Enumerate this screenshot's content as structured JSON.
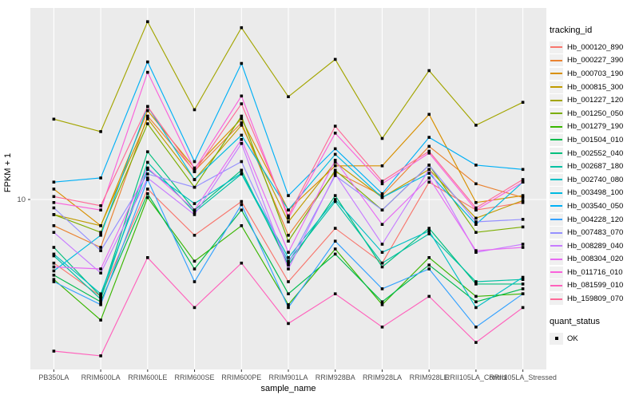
{
  "axes": {
    "xlabel": "sample_name",
    "ylabel": "FPKM + 1",
    "y_tick_label": "10"
  },
  "legend": {
    "tracking_title": "tracking_id",
    "quant_title": "quant_status",
    "quant_items": [
      {
        "label": "OK"
      }
    ]
  },
  "style": {
    "panel_bg": "#EBEBEB",
    "grid_color": "#FFFFFF",
    "tick_color": "#333333",
    "tick_label_color": "#4D4D4D",
    "axis_title_color": "#000000",
    "point_color": "#000000"
  },
  "chart_data": {
    "type": "line",
    "title": "",
    "xlabel": "sample_name",
    "ylabel": "FPKM + 1",
    "y_scale": "log10",
    "ylim": [
      2.0,
      62
    ],
    "y_ticks": [
      10
    ],
    "grid": "major-on-white",
    "legend_position": "right",
    "point_shape": "filled-square",
    "x_categories": [
      "PB350LA",
      "RRIM600LA",
      "RRIM600LE",
      "RRIM600SE",
      "RRIM600PE",
      "RRIM901LA",
      "RRIM928BA",
      "RRIM928LA",
      "RRIM928LE",
      "RRII105LA_Control",
      "RRII105LA_Stressed"
    ],
    "quant_status_all": "OK",
    "series": [
      {
        "name": "Hb_000120_890",
        "color": "#F8766D",
        "values": [
          5.3,
          3.8,
          11.1,
          7.0,
          9.8,
          4.4,
          7.5,
          5.3,
          11.9,
          9.0,
          9.7
        ]
      },
      {
        "name": "Hb_000227_390",
        "color": "#EA8331",
        "values": [
          7.7,
          6.2,
          23.0,
          13.3,
          21.5,
          7.0,
          13.2,
          10.4,
          17.0,
          11.7,
          10.2
        ]
      },
      {
        "name": "Hb_000703_190",
        "color": "#D89000",
        "values": [
          11.1,
          7.7,
          24.3,
          13.7,
          22.4,
          9.0,
          14.0,
          14.0,
          23.4,
          9.7,
          10.4
        ]
      },
      {
        "name": "Hb_000815_300",
        "color": "#C09B00",
        "values": [
          8.6,
          7.7,
          22.4,
          12.2,
          21.0,
          8.0,
          14.5,
          10.2,
          13.5,
          8.3,
          9.9
        ]
      },
      {
        "name": "Hb_001227_120",
        "color": "#A3A500",
        "values": [
          22.3,
          19.7,
          59.0,
          24.5,
          55.6,
          27.9,
          40.5,
          18.4,
          36.2,
          21.0,
          26.4
        ]
      },
      {
        "name": "Hb_001250_050",
        "color": "#7CAE00",
        "values": [
          8.6,
          7.2,
          21.3,
          11.3,
          23.0,
          6.6,
          13.4,
          9.0,
          14.1,
          7.2,
          7.6
        ]
      },
      {
        "name": "Hb_001279_190",
        "color": "#39B600",
        "values": [
          4.5,
          3.0,
          10.2,
          5.4,
          7.7,
          3.5,
          6.1,
          3.5,
          5.6,
          3.8,
          3.9
        ]
      },
      {
        "name": "Hb_001504_010",
        "color": "#00BB4E",
        "values": [
          4.7,
          3.6,
          10.6,
          5.0,
          9.0,
          3.9,
          5.8,
          3.6,
          5.2,
          3.6,
          4.1
        ]
      },
      {
        "name": "Hb_002552_040",
        "color": "#00BF7D",
        "values": [
          6.2,
          3.8,
          16.1,
          9.0,
          13.4,
          5.2,
          10.4,
          5.1,
          7.5,
          4.3,
          4.3
        ]
      },
      {
        "name": "Hb_002687_180",
        "color": "#00C1A3",
        "values": [
          5.7,
          3.7,
          14.5,
          8.8,
          12.9,
          5.4,
          9.8,
          5.3,
          7.1,
          4.4,
          4.5
        ]
      },
      {
        "name": "Hb_002740_080",
        "color": "#00BFC4",
        "values": [
          5.8,
          3.9,
          13.5,
          9.6,
          13.0,
          5.6,
          10.0,
          5.9,
          7.3,
          3.4,
          4.6
        ]
      },
      {
        "name": "Hb_003498_100",
        "color": "#00BAE0",
        "values": [
          4.9,
          7.0,
          25.3,
          12.2,
          19.0,
          9.0,
          15.7,
          10.2,
          13.0,
          7.8,
          11.9
        ]
      },
      {
        "name": "Hb_003540_050",
        "color": "#00B0F6",
        "values": [
          11.9,
          12.4,
          39.5,
          14.6,
          38.9,
          10.4,
          16.6,
          10.6,
          18.6,
          14.1,
          13.5
        ]
      },
      {
        "name": "Hb_004228_120",
        "color": "#35A2FF",
        "values": [
          4.4,
          3.5,
          12.2,
          4.4,
          9.5,
          3.4,
          6.6,
          4.1,
          5.0,
          2.8,
          3.9
        ]
      },
      {
        "name": "Hb_007483_070",
        "color": "#9590FF",
        "values": [
          9.2,
          6.0,
          12.9,
          11.3,
          14.6,
          5.3,
          12.7,
          9.0,
          14.1,
          8.0,
          8.2
        ]
      },
      {
        "name": "Hb_008289_040",
        "color": "#C77CFF",
        "values": [
          7.2,
          4.8,
          12.4,
          8.6,
          17.5,
          5.0,
          12.9,
          6.4,
          13.5,
          5.9,
          6.4
        ]
      },
      {
        "name": "Hb_008304_020",
        "color": "#E76BF3",
        "values": [
          5.1,
          5.0,
          13.7,
          9.0,
          18.2,
          5.9,
          14.8,
          7.8,
          12.4,
          6.0,
          6.2
        ]
      },
      {
        "name": "Hb_011716_010",
        "color": "#FA62DB",
        "values": [
          9.7,
          9.0,
          35.6,
          13.5,
          28.1,
          8.3,
          19.4,
          11.7,
          15.9,
          9.0,
          11.9
        ]
      },
      {
        "name": "Hb_081599_010",
        "color": "#FF62BC",
        "values": [
          2.2,
          2.1,
          5.6,
          3.4,
          5.3,
          2.9,
          3.9,
          2.8,
          3.8,
          2.4,
          3.4
        ]
      },
      {
        "name": "Hb_159809_070",
        "color": "#FF6A98",
        "values": [
          10.3,
          9.4,
          25.3,
          13.2,
          26.0,
          8.5,
          20.8,
          12.0,
          16.2,
          9.2,
          12.2
        ]
      }
    ]
  }
}
